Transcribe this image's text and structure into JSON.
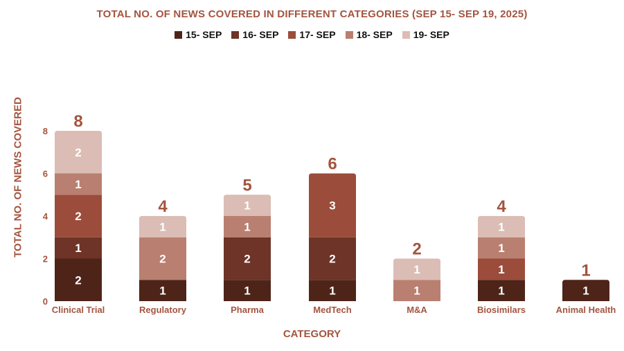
{
  "chart_data": {
    "type": "bar",
    "stacked": true,
    "title": "TOTAL NO. OF NEWS COVERED IN DIFFERENT CATEGORIES (SEP 15- SEP 19, 2025)",
    "xlabel": "CATEGORY",
    "ylabel": "TOTAL  NO. OF NEWS COVERED",
    "ylim": [
      0,
      8
    ],
    "yticks": [
      "0",
      "2",
      "4",
      "6",
      "8"
    ],
    "categories": [
      "Clinical Trial",
      "Regulatory",
      "Pharma",
      "MedTech",
      "M&A",
      "Biosimilars",
      "Animal Health"
    ],
    "series": [
      {
        "name": "15- SEP",
        "color": "#4e2419",
        "values": [
          2,
          1,
          1,
          1,
          0,
          1,
          1
        ]
      },
      {
        "name": "16- SEP",
        "color": "#6d3427",
        "values": [
          1,
          0,
          2,
          2,
          0,
          0,
          0
        ]
      },
      {
        "name": "17- SEP",
        "color": "#9c4c3a",
        "values": [
          2,
          0,
          0,
          3,
          0,
          1,
          0
        ]
      },
      {
        "name": "18- SEP",
        "color": "#b97f70",
        "values": [
          1,
          2,
          1,
          0,
          1,
          1,
          0
        ]
      },
      {
        "name": "19- SEP",
        "color": "#dbbdb5",
        "values": [
          2,
          1,
          1,
          0,
          1,
          1,
          0
        ]
      }
    ],
    "totals": [
      "8",
      "4",
      "5",
      "6",
      "2",
      "4",
      "1"
    ],
    "legend_position": "top-center",
    "grid": false,
    "colors": {
      "title": "#a4543f",
      "axis_labels": "#a4543f",
      "total_labels": "#a4543f",
      "segment_labels": "#ffffff"
    }
  }
}
